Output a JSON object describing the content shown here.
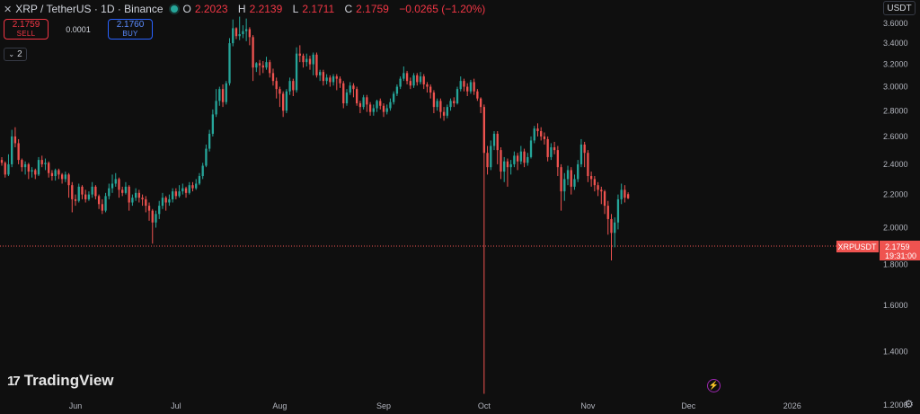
{
  "header": {
    "symbol": "XRP / TetherUS · 1D · Binance",
    "open_label": "O",
    "open": "2.2023",
    "high_label": "H",
    "high": "2.2139",
    "low_label": "L",
    "low": "2.1711",
    "close_label": "C",
    "close": "2.1759",
    "change": "−0.0265 (−1.20%)"
  },
  "trade_panel": {
    "sell_price": "2.1759",
    "sell_label": "SELL",
    "spread": "0.0001",
    "buy_price": "2.1760",
    "buy_label": "BUY"
  },
  "indicators_toggle": {
    "count": "2"
  },
  "currency_button": "USDT",
  "logo_text": "TradingView",
  "price_tag": {
    "symbol": "XRPUSDT",
    "price": "2.1759",
    "countdown": "19:31:00"
  },
  "colors": {
    "up": "#26a69a",
    "down": "#ef5350",
    "background": "#0f0f0f",
    "text": "#b2b5be"
  },
  "icons": [
    "bolt-icon",
    "gear-icon",
    "chevron-down-icon",
    "status-dot-icon"
  ],
  "chart_data": {
    "type": "candlestick",
    "title": "XRP / TetherUS · 1D · Binance",
    "xlabel": "",
    "ylabel": "",
    "ylim": [
      1.17,
      3.85
    ],
    "y_scale": "log",
    "y_ticks": [
      "3.6000",
      "3.4000",
      "3.2000",
      "3.0000",
      "2.8000",
      "2.6000",
      "2.4000",
      "2.2000",
      "2.0000",
      "1.8000",
      "1.6000",
      "1.4000",
      "1.2000"
    ],
    "x_ticks": [
      {
        "label": "Jun",
        "month": "2025-06-01"
      },
      {
        "label": "Jul",
        "month": "2025-07-01"
      },
      {
        "label": "Aug",
        "month": "2025-08-01"
      },
      {
        "label": "Sep",
        "month": "2025-09-01"
      },
      {
        "label": "Oct",
        "month": "2025-10-01"
      },
      {
        "label": "Nov",
        "month": "2025-11-01"
      },
      {
        "label": "Dec",
        "month": "2025-12-01"
      },
      {
        "label": "2026",
        "month": "2026-01-01"
      }
    ],
    "x_range": [
      "2025-05-10",
      "2026-01-26"
    ],
    "grid": false,
    "first_date": "2025-05-10",
    "candles": [
      [
        2.43,
        2.41,
        2.45,
        2.39
      ],
      [
        2.41,
        2.33,
        2.42,
        2.31
      ],
      [
        2.33,
        2.4,
        2.47,
        2.32
      ],
      [
        2.4,
        2.6,
        2.65,
        2.38
      ],
      [
        2.6,
        2.55,
        2.67,
        2.52
      ],
      [
        2.55,
        2.43,
        2.58,
        2.4
      ],
      [
        2.43,
        2.38,
        2.44,
        2.35
      ],
      [
        2.38,
        2.4,
        2.42,
        2.33
      ],
      [
        2.4,
        2.35,
        2.41,
        2.3
      ],
      [
        2.35,
        2.36,
        2.38,
        2.31
      ],
      [
        2.36,
        2.33,
        2.37,
        2.3
      ],
      [
        2.33,
        2.43,
        2.45,
        2.32
      ],
      [
        2.43,
        2.4,
        2.46,
        2.38
      ],
      [
        2.4,
        2.41,
        2.44,
        2.36
      ],
      [
        2.41,
        2.34,
        2.42,
        2.31
      ],
      [
        2.34,
        2.32,
        2.36,
        2.29
      ],
      [
        2.32,
        2.36,
        2.37,
        2.29
      ],
      [
        2.36,
        2.33,
        2.37,
        2.3
      ],
      [
        2.33,
        2.3,
        2.34,
        2.27
      ],
      [
        2.3,
        2.33,
        2.35,
        2.28
      ],
      [
        2.33,
        2.26,
        2.34,
        2.18
      ],
      [
        2.26,
        2.17,
        2.28,
        2.09
      ],
      [
        2.17,
        2.16,
        2.2,
        2.13
      ],
      [
        2.16,
        2.25,
        2.27,
        2.15
      ],
      [
        2.25,
        2.2,
        2.26,
        2.17
      ],
      [
        2.2,
        2.17,
        2.23,
        2.15
      ],
      [
        2.17,
        2.2,
        2.22,
        2.16
      ],
      [
        2.2,
        2.25,
        2.28,
        2.18
      ],
      [
        2.25,
        2.19,
        2.26,
        2.17
      ],
      [
        2.19,
        2.14,
        2.2,
        2.11
      ],
      [
        2.14,
        2.1,
        2.17,
        2.08
      ],
      [
        2.1,
        2.19,
        2.21,
        2.09
      ],
      [
        2.19,
        2.24,
        2.27,
        2.17
      ],
      [
        2.24,
        2.27,
        2.33,
        2.21
      ],
      [
        2.27,
        2.3,
        2.34,
        2.25
      ],
      [
        2.3,
        2.23,
        2.31,
        2.18
      ],
      [
        2.23,
        2.21,
        2.25,
        2.19
      ],
      [
        2.21,
        2.25,
        2.28,
        2.2
      ],
      [
        2.25,
        2.15,
        2.26,
        2.1
      ],
      [
        2.15,
        2.18,
        2.2,
        2.13
      ],
      [
        2.18,
        2.21,
        2.24,
        2.16
      ],
      [
        2.21,
        2.18,
        2.23,
        2.15
      ],
      [
        2.18,
        2.17,
        2.2,
        2.13
      ],
      [
        2.17,
        2.13,
        2.19,
        2.09
      ],
      [
        2.13,
        2.1,
        2.15,
        2.04
      ],
      [
        2.1,
        2.03,
        2.11,
        1.91
      ],
      [
        2.03,
        2.08,
        2.1,
        2.0
      ],
      [
        2.08,
        2.13,
        2.16,
        2.05
      ],
      [
        2.13,
        2.18,
        2.21,
        2.11
      ],
      [
        2.18,
        2.15,
        2.19,
        2.1
      ],
      [
        2.15,
        2.17,
        2.2,
        2.13
      ],
      [
        2.17,
        2.22,
        2.24,
        2.15
      ],
      [
        2.22,
        2.19,
        2.24,
        2.17
      ],
      [
        2.19,
        2.22,
        2.26,
        2.18
      ],
      [
        2.22,
        2.24,
        2.27,
        2.2
      ],
      [
        2.24,
        2.21,
        2.25,
        2.18
      ],
      [
        2.21,
        2.26,
        2.28,
        2.2
      ],
      [
        2.26,
        2.24,
        2.28,
        2.22
      ],
      [
        2.24,
        2.27,
        2.3,
        2.23
      ],
      [
        2.27,
        2.32,
        2.34,
        2.26
      ],
      [
        2.32,
        2.39,
        2.41,
        2.3
      ],
      [
        2.39,
        2.51,
        2.54,
        2.38
      ],
      [
        2.51,
        2.62,
        2.65,
        2.49
      ],
      [
        2.62,
        2.77,
        2.81,
        2.6
      ],
      [
        2.77,
        2.88,
        2.98,
        2.75
      ],
      [
        2.88,
        2.98,
        3.0,
        2.84
      ],
      [
        2.98,
        2.87,
        3.02,
        2.83
      ],
      [
        2.87,
        3.03,
        3.05,
        2.85
      ],
      [
        3.03,
        3.4,
        3.45,
        3.01
      ],
      [
        3.4,
        3.55,
        3.64,
        3.37
      ],
      [
        3.55,
        3.47,
        3.56,
        3.44
      ],
      [
        3.47,
        3.49,
        3.67,
        3.43
      ],
      [
        3.49,
        3.52,
        3.58,
        3.45
      ],
      [
        3.52,
        3.54,
        3.65,
        3.42
      ],
      [
        3.54,
        3.46,
        3.56,
        3.38
      ],
      [
        3.46,
        3.17,
        3.48,
        3.05
      ],
      [
        3.17,
        3.21,
        3.22,
        3.13
      ],
      [
        3.21,
        3.19,
        3.24,
        3.1
      ],
      [
        3.19,
        3.17,
        3.23,
        3.12
      ],
      [
        3.17,
        3.22,
        3.27,
        3.15
      ],
      [
        3.22,
        3.12,
        3.24,
        3.08
      ],
      [
        3.12,
        3.05,
        3.16,
        3.01
      ],
      [
        3.05,
        2.98,
        3.08,
        2.9
      ],
      [
        2.98,
        2.94,
        3.0,
        2.83
      ],
      [
        2.94,
        2.8,
        2.96,
        2.75
      ],
      [
        2.8,
        2.96,
        2.98,
        2.78
      ],
      [
        2.96,
        3.05,
        3.08,
        2.93
      ],
      [
        3.05,
        2.97,
        3.07,
        2.92
      ],
      [
        2.97,
        3.3,
        3.36,
        2.95
      ],
      [
        3.3,
        3.28,
        3.38,
        3.22
      ],
      [
        3.28,
        3.22,
        3.3,
        3.17
      ],
      [
        3.22,
        3.25,
        3.3,
        3.18
      ],
      [
        3.25,
        3.2,
        3.28,
        3.15
      ],
      [
        3.2,
        3.29,
        3.31,
        3.1
      ],
      [
        3.29,
        3.1,
        3.31,
        3.08
      ],
      [
        3.1,
        3.13,
        3.15,
        3.05
      ],
      [
        3.13,
        3.05,
        3.15,
        3.01
      ],
      [
        3.05,
        3.08,
        3.11,
        3.02
      ],
      [
        3.08,
        3.04,
        3.1,
        3.0
      ],
      [
        3.04,
        3.09,
        3.11,
        3.01
      ],
      [
        3.09,
        3.07,
        3.11,
        2.97
      ],
      [
        3.07,
        3.03,
        3.09,
        2.99
      ],
      [
        3.03,
        2.86,
        3.05,
        2.82
      ],
      [
        2.86,
        2.95,
        2.98,
        2.84
      ],
      [
        2.95,
        3.01,
        3.04,
        2.93
      ],
      [
        3.01,
        2.98,
        3.03,
        2.91
      ],
      [
        2.98,
        2.86,
        3.0,
        2.84
      ],
      [
        2.86,
        2.83,
        2.88,
        2.78
      ],
      [
        2.83,
        2.91,
        2.93,
        2.81
      ],
      [
        2.91,
        2.85,
        2.93,
        2.79
      ],
      [
        2.85,
        2.79,
        2.87,
        2.76
      ],
      [
        2.79,
        2.82,
        2.85,
        2.76
      ],
      [
        2.82,
        2.88,
        2.89,
        2.79
      ],
      [
        2.88,
        2.84,
        2.9,
        2.81
      ],
      [
        2.84,
        2.79,
        2.86,
        2.75
      ],
      [
        2.79,
        2.82,
        2.85,
        2.77
      ],
      [
        2.82,
        2.87,
        2.9,
        2.8
      ],
      [
        2.87,
        2.94,
        2.96,
        2.85
      ],
      [
        2.94,
        3.0,
        3.02,
        2.92
      ],
      [
        3.0,
        3.07,
        3.09,
        2.98
      ],
      [
        3.07,
        3.12,
        3.18,
        3.05
      ],
      [
        3.12,
        3.05,
        3.14,
        3.02
      ],
      [
        3.05,
        3.01,
        3.08,
        2.98
      ],
      [
        3.01,
        3.1,
        3.12,
        2.99
      ],
      [
        3.1,
        3.04,
        3.12,
        3.01
      ],
      [
        3.04,
        3.09,
        3.13,
        3.02
      ],
      [
        3.09,
        3.02,
        3.11,
        2.98
      ],
      [
        3.02,
        3.0,
        3.04,
        2.95
      ],
      [
        3.0,
        2.95,
        3.02,
        2.9
      ],
      [
        2.95,
        2.83,
        2.97,
        2.78
      ],
      [
        2.83,
        2.88,
        2.9,
        2.8
      ],
      [
        2.88,
        2.79,
        2.9,
        2.74
      ],
      [
        2.79,
        2.76,
        2.83,
        2.72
      ],
      [
        2.76,
        2.83,
        2.85,
        2.74
      ],
      [
        2.83,
        2.88,
        2.9,
        2.8
      ],
      [
        2.88,
        2.86,
        2.91,
        2.83
      ],
      [
        2.86,
        2.98,
        3.0,
        2.85
      ],
      [
        2.98,
        3.05,
        3.09,
        2.96
      ],
      [
        3.05,
        3.0,
        3.07,
        2.96
      ],
      [
        3.0,
        2.96,
        3.03,
        2.92
      ],
      [
        2.96,
        3.04,
        3.06,
        2.94
      ],
      [
        3.04,
        2.96,
        3.07,
        2.93
      ],
      [
        2.96,
        2.9,
        2.98,
        2.88
      ],
      [
        2.9,
        2.83,
        2.91,
        2.78
      ],
      [
        2.83,
        2.48,
        2.85,
        1.24
      ],
      [
        2.48,
        2.38,
        2.53,
        2.33
      ],
      [
        2.38,
        2.53,
        2.57,
        2.36
      ],
      [
        2.53,
        2.62,
        2.64,
        2.5
      ],
      [
        2.62,
        2.5,
        2.64,
        2.4
      ],
      [
        2.5,
        2.35,
        2.52,
        2.3
      ],
      [
        2.35,
        2.42,
        2.45,
        2.28
      ],
      [
        2.42,
        2.38,
        2.44,
        2.25
      ],
      [
        2.38,
        2.4,
        2.43,
        2.33
      ],
      [
        2.4,
        2.46,
        2.49,
        2.38
      ],
      [
        2.46,
        2.42,
        2.48,
        2.36
      ],
      [
        2.42,
        2.49,
        2.53,
        2.4
      ],
      [
        2.49,
        2.41,
        2.51,
        2.38
      ],
      [
        2.41,
        2.45,
        2.48,
        2.39
      ],
      [
        2.45,
        2.57,
        2.6,
        2.44
      ],
      [
        2.57,
        2.66,
        2.68,
        2.55
      ],
      [
        2.66,
        2.64,
        2.7,
        2.6
      ],
      [
        2.64,
        2.6,
        2.67,
        2.57
      ],
      [
        2.6,
        2.58,
        2.63,
        2.54
      ],
      [
        2.58,
        2.45,
        2.6,
        2.42
      ],
      [
        2.45,
        2.52,
        2.55,
        2.43
      ],
      [
        2.52,
        2.5,
        2.56,
        2.47
      ],
      [
        2.5,
        2.38,
        2.53,
        2.32
      ],
      [
        2.38,
        2.22,
        2.4,
        2.1
      ],
      [
        2.22,
        2.3,
        2.34,
        2.16
      ],
      [
        2.3,
        2.36,
        2.39,
        2.26
      ],
      [
        2.36,
        2.25,
        2.38,
        2.2
      ],
      [
        2.25,
        2.3,
        2.33,
        2.23
      ],
      [
        2.3,
        2.4,
        2.43,
        2.28
      ],
      [
        2.4,
        2.54,
        2.58,
        2.38
      ],
      [
        2.54,
        2.48,
        2.56,
        2.38
      ],
      [
        2.48,
        2.32,
        2.5,
        2.28
      ],
      [
        2.32,
        2.3,
        2.35,
        2.25
      ],
      [
        2.3,
        2.26,
        2.32,
        2.22
      ],
      [
        2.26,
        2.23,
        2.28,
        2.19
      ],
      [
        2.23,
        2.22,
        2.25,
        2.14
      ],
      [
        2.22,
        2.13,
        2.23,
        2.08
      ],
      [
        2.13,
        2.05,
        2.16,
        1.96
      ],
      [
        2.05,
        1.97,
        2.08,
        1.82
      ],
      [
        1.97,
        2.03,
        2.06,
        1.89
      ],
      [
        2.03,
        2.17,
        2.2,
        1.99
      ],
      [
        2.17,
        2.23,
        2.27,
        2.14
      ],
      [
        2.23,
        2.18,
        2.26,
        2.15
      ],
      [
        2.202,
        2.176,
        2.214,
        2.171
      ]
    ]
  }
}
